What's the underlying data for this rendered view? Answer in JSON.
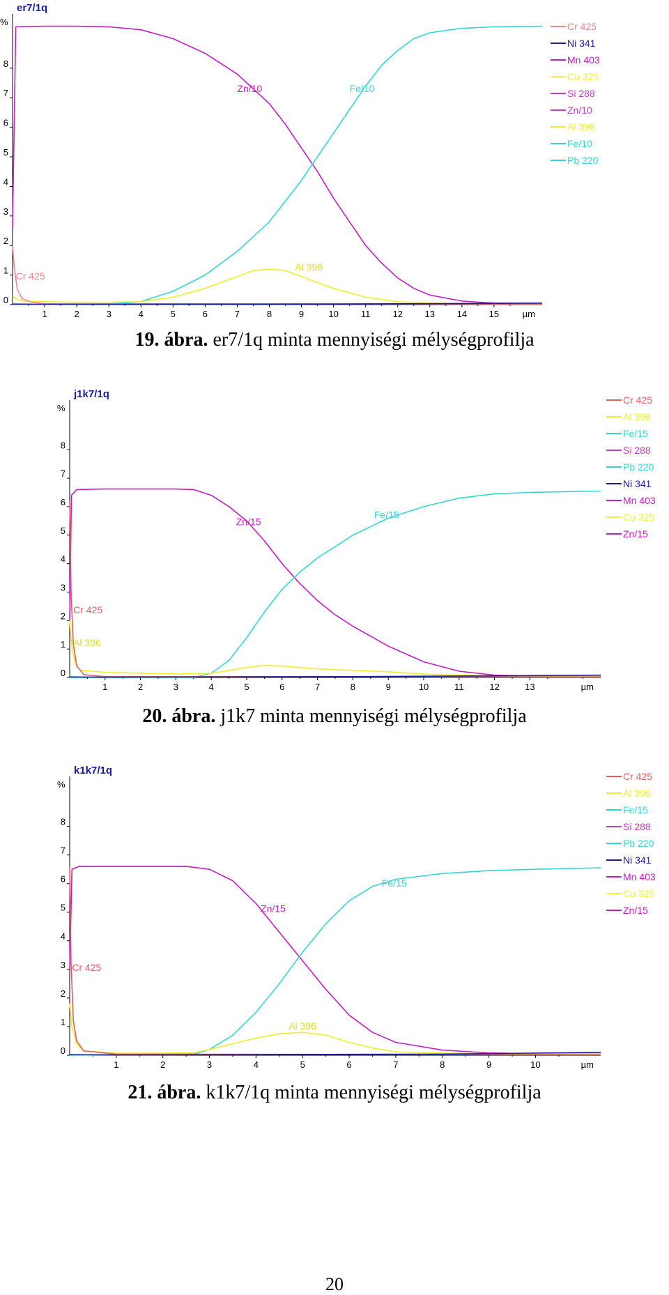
{
  "chart_data": [
    {
      "type": "line",
      "title": "er7/1q",
      "ylabel": "%",
      "xlabel": "µm",
      "ylim": [
        0,
        9.6
      ],
      "xlim": [
        0,
        16.5
      ],
      "y_ticks": [
        "0",
        "1",
        "2",
        "3",
        "4",
        "5",
        "6",
        "7",
        "8"
      ],
      "x_ticks": [
        "1",
        "2",
        "3",
        "4",
        "5",
        "6",
        "7",
        "8",
        "9",
        "10",
        "11",
        "12",
        "13",
        "14",
        "15"
      ],
      "x_unit": "µm",
      "legend": {
        "placement": "right",
        "entries": [
          {
            "name": "Cr 425",
            "color": "#e88a8a"
          },
          {
            "name": "Ni 341",
            "color": "#1c1c9c"
          },
          {
            "name": "Mn 403",
            "color": "#c21ec2"
          },
          {
            "name": "Cu 325",
            "color": "#f2f23a"
          },
          {
            "name": "Si 288",
            "color": "#c040c0"
          },
          {
            "name": "Zn/10",
            "color": "#c040c0"
          },
          {
            "name": "Al 396",
            "color": "#eeee30"
          },
          {
            "name": "Fe/10",
            "color": "#33d6d6"
          },
          {
            "name": "Pb 220",
            "color": "#33d6d6"
          }
        ]
      },
      "annotations": [
        {
          "text": "Zn/10",
          "x": 7.0,
          "y": 7.2,
          "color": "#c21ec2"
        },
        {
          "text": "Fe/10",
          "x": 10.5,
          "y": 7.2,
          "color": "#33d6d6"
        },
        {
          "text": "Al 396",
          "x": 8.8,
          "y": 1.15,
          "color": "#e0e020"
        },
        {
          "text": "Cr 425",
          "x": 0.1,
          "y": 0.85,
          "color": "#e88a8a"
        }
      ],
      "series": [
        {
          "name": "Zn/10",
          "color": "#c21ec2",
          "x": [
            0,
            0.1,
            1,
            2,
            3,
            4,
            5,
            6,
            7,
            8,
            8.5,
            9,
            9.5,
            10,
            10.5,
            11,
            11.5,
            12,
            12.5,
            13,
            14,
            15,
            16.5
          ],
          "y": [
            2.6,
            9.4,
            9.42,
            9.42,
            9.4,
            9.3,
            9.0,
            8.5,
            7.8,
            6.8,
            6.1,
            5.3,
            4.5,
            3.6,
            2.8,
            2.0,
            1.4,
            0.9,
            0.55,
            0.32,
            0.12,
            0.05,
            0.03
          ]
        },
        {
          "name": "Fe/10",
          "color": "#33d6d6",
          "x": [
            0,
            3,
            4,
            5,
            6,
            7,
            8,
            9,
            10,
            10.5,
            11,
            11.5,
            12,
            12.5,
            13,
            14,
            15,
            16.5
          ],
          "y": [
            0.0,
            0.02,
            0.1,
            0.45,
            1.0,
            1.8,
            2.8,
            4.2,
            5.8,
            6.6,
            7.4,
            8.1,
            8.6,
            9.0,
            9.2,
            9.35,
            9.4,
            9.42
          ]
        },
        {
          "name": "Al 396",
          "color": "#eeee30",
          "x": [
            0,
            0.1,
            0.3,
            1,
            2,
            3,
            4,
            5,
            6,
            7,
            7.5,
            8,
            8.5,
            9,
            10,
            11,
            12,
            13,
            14,
            16.5
          ],
          "y": [
            0.3,
            0.2,
            0.12,
            0.1,
            0.08,
            0.08,
            0.1,
            0.25,
            0.55,
            0.95,
            1.15,
            1.2,
            1.15,
            0.95,
            0.55,
            0.25,
            0.1,
            0.05,
            0.03,
            0.03
          ]
        },
        {
          "name": "Cr 425",
          "color": "#e88a8a",
          "x": [
            0,
            0.05,
            0.15,
            0.3,
            0.6,
            1,
            16.5
          ],
          "y": [
            2.0,
            1.3,
            0.5,
            0.2,
            0.08,
            0.03,
            0.02
          ]
        },
        {
          "name": "Ni 341",
          "color": "#1c1c9c",
          "x": [
            0,
            1,
            10,
            16.5
          ],
          "y": [
            0.02,
            0.01,
            0.02,
            0.05
          ]
        }
      ]
    },
    {
      "type": "line",
      "title": "j1k7/1q",
      "ylabel": "%",
      "xlabel": "µm",
      "ylim": [
        0,
        9.5
      ],
      "xlim": [
        0,
        15
      ],
      "y_ticks": [
        "0",
        "1",
        "2",
        "3",
        "4",
        "5",
        "6",
        "7",
        "8"
      ],
      "x_ticks": [
        "1",
        "2",
        "3",
        "4",
        "5",
        "6",
        "7",
        "8",
        "9",
        "10",
        "11",
        "12",
        "13"
      ],
      "x_unit": "µm",
      "legend": {
        "placement": "right",
        "entries": [
          {
            "name": "Cr 425",
            "color": "#e06060"
          },
          {
            "name": "Al 396",
            "color": "#eeee30"
          },
          {
            "name": "Fe/15",
            "color": "#33d6d6"
          },
          {
            "name": "Si 288",
            "color": "#c040c0"
          },
          {
            "name": "Pb 220",
            "color": "#33d6d6"
          },
          {
            "name": "Ni 341",
            "color": "#1c1c9c"
          },
          {
            "name": "Mn 403",
            "color": "#c21ec2"
          },
          {
            "name": "Cu 325",
            "color": "#f2f23a"
          },
          {
            "name": "Zn/15",
            "color": "#c21ec2"
          }
        ]
      },
      "annotations": [
        {
          "text": "Zn/15",
          "x": 4.7,
          "y": 5.35,
          "color": "#c21ec2"
        },
        {
          "text": "Fe/15",
          "x": 8.6,
          "y": 5.6,
          "color": "#33d6d6"
        },
        {
          "text": "Cr 425",
          "x": 0.1,
          "y": 2.25,
          "color": "#e06060"
        },
        {
          "text": "Al 396",
          "x": 0.1,
          "y": 1.1,
          "color": "#e0e020"
        }
      ],
      "series": [
        {
          "name": "Zn/15",
          "color": "#c21ec2",
          "x": [
            0,
            0.05,
            0.2,
            1,
            2,
            3,
            3.5,
            4,
            4.5,
            5,
            5.5,
            6,
            6.5,
            7,
            7.5,
            8,
            9,
            10,
            11,
            12,
            13,
            15
          ],
          "y": [
            2.0,
            6.4,
            6.6,
            6.62,
            6.62,
            6.62,
            6.6,
            6.4,
            6.0,
            5.5,
            4.8,
            4.0,
            3.3,
            2.7,
            2.2,
            1.8,
            1.1,
            0.55,
            0.22,
            0.08,
            0.05,
            0.05
          ]
        },
        {
          "name": "Fe/15",
          "color": "#33d6d6",
          "x": [
            0,
            3.5,
            4,
            4.5,
            5,
            5.5,
            6,
            6.5,
            7,
            8,
            9,
            10,
            11,
            12,
            13,
            15
          ],
          "y": [
            0.0,
            0.0,
            0.15,
            0.6,
            1.4,
            2.3,
            3.1,
            3.7,
            4.2,
            5.0,
            5.6,
            6.0,
            6.3,
            6.45,
            6.5,
            6.55
          ]
        },
        {
          "name": "Al 396",
          "color": "#eeee30",
          "x": [
            0,
            0.05,
            0.15,
            0.3,
            1,
            2,
            3,
            4,
            5,
            5.5,
            6,
            7,
            8,
            9,
            10,
            11,
            12,
            15
          ],
          "y": [
            2.0,
            1.2,
            0.5,
            0.25,
            0.18,
            0.15,
            0.12,
            0.15,
            0.35,
            0.42,
            0.4,
            0.3,
            0.25,
            0.2,
            0.12,
            0.08,
            0.05,
            0.05
          ]
        },
        {
          "name": "Cr 425",
          "color": "#e06060",
          "x": [
            0,
            0.04,
            0.1,
            0.2,
            0.4,
            1,
            15
          ],
          "y": [
            6.2,
            3.0,
            1.2,
            0.4,
            0.1,
            0.03,
            0.02
          ]
        },
        {
          "name": "Ni 341",
          "color": "#1c1c9c",
          "x": [
            0,
            1,
            8,
            15
          ],
          "y": [
            0.02,
            0.01,
            0.03,
            0.08
          ]
        }
      ]
    },
    {
      "type": "line",
      "title": "k1k7/1q",
      "ylabel": "%",
      "xlabel": "µm",
      "ylim": [
        0,
        9.5
      ],
      "xlim": [
        0,
        11.4
      ],
      "y_ticks": [
        "0",
        "1",
        "2",
        "3",
        "4",
        "5",
        "6",
        "7",
        "8"
      ],
      "x_ticks": [
        "1",
        "2",
        "3",
        "4",
        "5",
        "6",
        "7",
        "8",
        "9",
        "10"
      ],
      "x_unit": "µm",
      "legend": {
        "placement": "right",
        "entries": [
          {
            "name": "Cr 425",
            "color": "#e06060"
          },
          {
            "name": "Al 396",
            "color": "#eeee30"
          },
          {
            "name": "Fe/15",
            "color": "#33d6d6"
          },
          {
            "name": "Si 288",
            "color": "#c040c0"
          },
          {
            "name": "Pb 220",
            "color": "#33d6d6"
          },
          {
            "name": "Ni 341",
            "color": "#1c1c9c"
          },
          {
            "name": "Mn 403",
            "color": "#c21ec2"
          },
          {
            "name": "Cu 325",
            "color": "#f2f23a"
          },
          {
            "name": "Zn/15",
            "color": "#c21ec2"
          }
        ]
      },
      "annotations": [
        {
          "text": "Zn/15",
          "x": 4.1,
          "y": 5.0,
          "color": "#c21ec2"
        },
        {
          "text": "Fe/15",
          "x": 6.7,
          "y": 5.9,
          "color": "#33d6d6"
        },
        {
          "text": "Cr 425",
          "x": 0.05,
          "y": 2.95,
          "color": "#e06060"
        },
        {
          "text": "Al 396",
          "x": 4.7,
          "y": 0.9,
          "color": "#e0e020"
        }
      ],
      "series": [
        {
          "name": "Zn/15",
          "color": "#c21ec2",
          "x": [
            0,
            0.05,
            0.2,
            1,
            2,
            2.5,
            3,
            3.5,
            4,
            4.5,
            5,
            5.5,
            6,
            6.5,
            7,
            8,
            9,
            10,
            11.4
          ],
          "y": [
            3.0,
            6.5,
            6.6,
            6.6,
            6.6,
            6.6,
            6.5,
            6.1,
            5.3,
            4.3,
            3.3,
            2.3,
            1.4,
            0.8,
            0.45,
            0.18,
            0.08,
            0.05,
            0.05
          ]
        },
        {
          "name": "Fe/15",
          "color": "#33d6d6",
          "x": [
            0,
            2.7,
            3,
            3.5,
            4,
            4.5,
            5,
            5.5,
            6,
            6.5,
            7,
            8,
            9,
            10,
            11.4
          ],
          "y": [
            0.0,
            0.05,
            0.2,
            0.7,
            1.5,
            2.5,
            3.6,
            4.6,
            5.4,
            5.9,
            6.15,
            6.35,
            6.45,
            6.5,
            6.55
          ]
        },
        {
          "name": "Al 396",
          "color": "#eeee30",
          "x": [
            0,
            0.05,
            0.15,
            0.3,
            1,
            2,
            2.7,
            3,
            3.5,
            4,
            4.5,
            5,
            5.5,
            6,
            6.5,
            7,
            8,
            9,
            11.4
          ],
          "y": [
            1.8,
            1.0,
            0.4,
            0.15,
            0.07,
            0.07,
            0.1,
            0.2,
            0.4,
            0.6,
            0.75,
            0.8,
            0.7,
            0.45,
            0.25,
            0.12,
            0.07,
            0.05,
            0.05
          ]
        },
        {
          "name": "Cr 425",
          "color": "#e06060",
          "x": [
            0,
            0.03,
            0.08,
            0.15,
            0.3,
            1,
            11.4
          ],
          "y": [
            6.6,
            3.2,
            1.2,
            0.5,
            0.15,
            0.04,
            0.02
          ]
        },
        {
          "name": "Ni 341",
          "color": "#1c1c9c",
          "x": [
            0,
            1,
            8,
            11.4
          ],
          "y": [
            0.02,
            0.01,
            0.04,
            0.1
          ]
        }
      ]
    }
  ],
  "captions": [
    {
      "label": "19. ábra.",
      "text": " er7/1q minta mennyiségi mélységprofilja"
    },
    {
      "label": "20. ábra.",
      "text": " j1k7 minta mennyiségi mélységprofilja"
    },
    {
      "label": "21. ábra.",
      "text": " k1k7/1q minta mennyiségi mélységprofilja"
    }
  ],
  "page_number": "20"
}
